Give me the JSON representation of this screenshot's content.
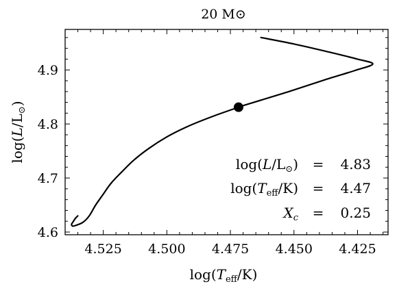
{
  "chart_data": {
    "type": "line",
    "title": "20 M⊙",
    "xlabel": "log(T_eff/K)",
    "ylabel": "log(L/L⊙)",
    "xlim": [
      4.54,
      4.413
    ],
    "ylim": [
      4.595,
      4.975
    ],
    "x_ticks": [
      4.525,
      4.5,
      4.475,
      4.45,
      4.425
    ],
    "x_tick_labels": [
      "4.525",
      "4.500",
      "4.475",
      "4.450",
      "4.425"
    ],
    "y_ticks": [
      4.6,
      4.7,
      4.8,
      4.9
    ],
    "y_tick_labels": [
      "4.6",
      "4.7",
      "4.8",
      "4.9"
    ],
    "grid": false,
    "series": [
      {
        "x": [
          4.463,
          4.45,
          4.437,
          4.425,
          4.419,
          4.426,
          4.437,
          4.452,
          4.47,
          4.4718,
          4.482,
          4.492,
          4.5,
          4.507,
          4.513,
          4.518,
          4.522,
          4.525,
          4.528,
          4.5305,
          4.533,
          4.536,
          4.537,
          4.5375,
          4.537,
          4.536,
          4.535
        ],
        "y": [
          4.96,
          4.948,
          4.934,
          4.92,
          4.911,
          4.899,
          4.883,
          4.86,
          4.834,
          4.831,
          4.814,
          4.795,
          4.776,
          4.755,
          4.733,
          4.71,
          4.69,
          4.67,
          4.65,
          4.63,
          4.618,
          4.612,
          4.611,
          4.614,
          4.618,
          4.625,
          4.63
        ]
      }
    ],
    "marker": {
      "x": 4.4718,
      "y": 4.831
    },
    "annotations": [
      {
        "label": "log(L/L⊙)",
        "equals": "=",
        "value": "4.83"
      },
      {
        "label": "log(T_eff/K)",
        "equals": "=",
        "value": "4.47"
      },
      {
        "label": "X_c",
        "equals": "=",
        "value": "0.25"
      }
    ]
  }
}
